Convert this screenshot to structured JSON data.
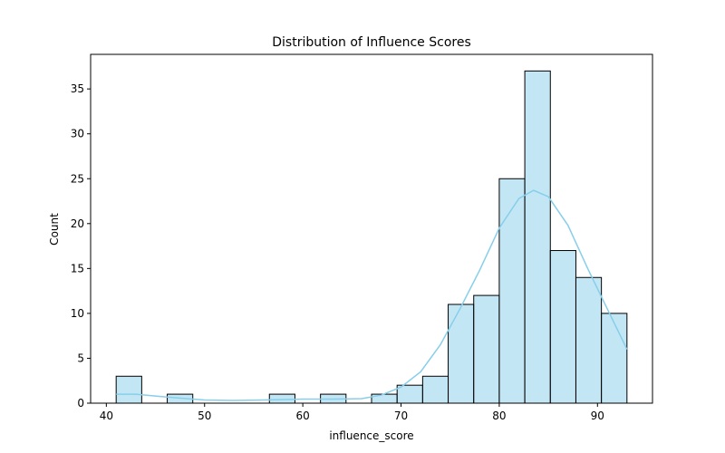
{
  "chart_data": {
    "type": "bar",
    "title": "Distribution of Influence Scores",
    "xlabel": "influence_score",
    "ylabel": "Count",
    "bin_edges": [
      41.0,
      43.6,
      46.2,
      48.8,
      51.4,
      54.0,
      56.6,
      59.2,
      61.8,
      64.4,
      67.0,
      69.6,
      72.2,
      74.8,
      77.4,
      80.0,
      82.6,
      85.2,
      87.8,
      90.4,
      93.0
    ],
    "values": [
      3,
      0,
      1,
      0,
      0,
      0,
      1,
      0,
      1,
      0,
      1,
      2,
      3,
      11,
      12,
      25,
      37,
      17,
      14,
      10
    ],
    "kde": {
      "x": [
        41,
        43,
        45,
        47,
        50,
        53,
        56,
        60,
        63,
        66,
        68,
        70,
        72,
        74,
        76,
        78,
        80,
        82,
        83.5,
        85,
        87,
        89,
        91,
        93
      ],
      "y": [
        1.0,
        1.0,
        0.8,
        0.6,
        0.35,
        0.3,
        0.35,
        0.45,
        0.45,
        0.5,
        0.9,
        1.8,
        3.5,
        6.5,
        10.5,
        14.8,
        19.5,
        22.8,
        23.7,
        23.0,
        19.8,
        15.0,
        10.5,
        6.0
      ]
    },
    "xlim": [
      38.4,
      95.6
    ],
    "ylim": [
      0,
      38.85
    ],
    "xticks": [
      40,
      50,
      60,
      70,
      80,
      90
    ],
    "yticks": [
      0,
      5,
      10,
      15,
      20,
      25,
      30,
      35
    ],
    "bar_color": "#87ceeb",
    "bar_edge_color": "#000000",
    "kde_color": "#87ceeb",
    "grid": false
  }
}
